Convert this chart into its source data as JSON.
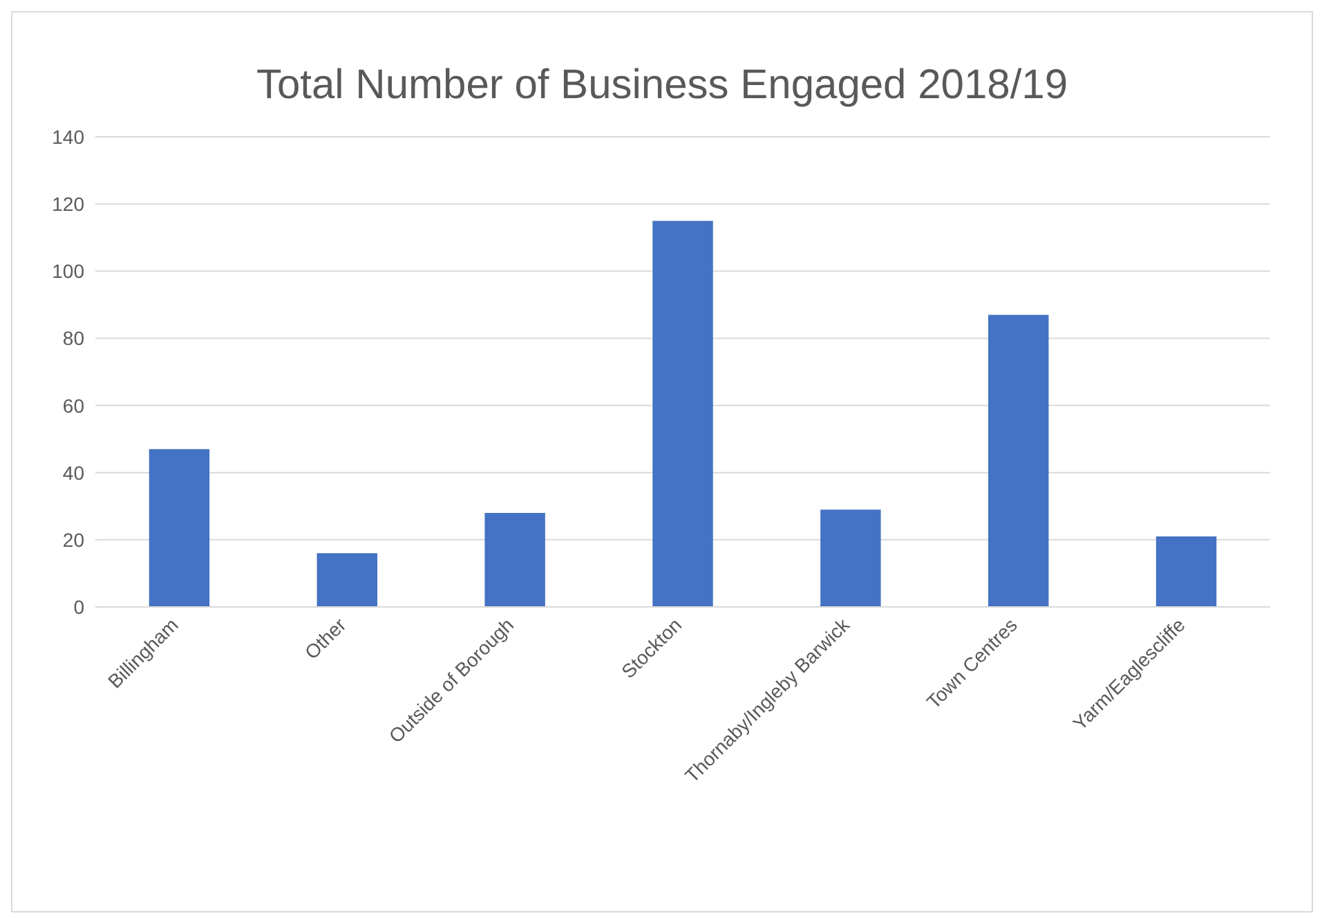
{
  "chart_data": {
    "type": "bar",
    "title": "Total Number of Business Engaged 2018/19",
    "categories": [
      "Billingham",
      "Other",
      "Outside of Borough",
      "Stockton",
      "Thornaby/Ingleby Barwick",
      "Town Centres",
      "Yarm/Eaglescliffe"
    ],
    "values": [
      47,
      16,
      28,
      115,
      29,
      87,
      21
    ],
    "color": "#4472c4",
    "ylim": [
      0,
      140
    ],
    "yticks": [
      0,
      20,
      40,
      60,
      80,
      100,
      120,
      140
    ],
    "grid": "y"
  }
}
